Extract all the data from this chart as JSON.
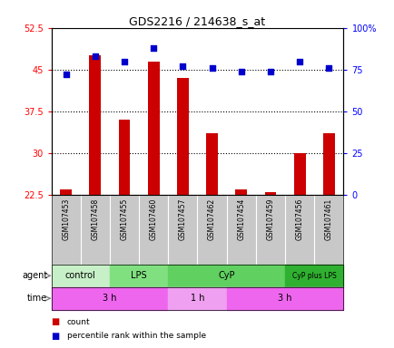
{
  "title": "GDS2216 / 214638_s_at",
  "samples": [
    "GSM107453",
    "GSM107458",
    "GSM107455",
    "GSM107460",
    "GSM107457",
    "GSM107462",
    "GSM107454",
    "GSM107459",
    "GSM107456",
    "GSM107461"
  ],
  "count_values": [
    23.5,
    47.5,
    36.0,
    46.5,
    43.5,
    33.5,
    23.5,
    23.0,
    30.0,
    33.5
  ],
  "percentile_values": [
    72,
    83,
    80,
    88,
    77,
    76,
    74,
    74,
    80,
    76
  ],
  "ylim_left": [
    22.5,
    52.5
  ],
  "ylim_right": [
    0,
    100
  ],
  "yticks_left": [
    22.5,
    30,
    37.5,
    45,
    52.5
  ],
  "yticks_right": [
    0,
    25,
    50,
    75,
    100
  ],
  "ytick_labels_left": [
    "22.5",
    "30",
    "37.5",
    "45",
    "52.5"
  ],
  "ytick_labels_right": [
    "0",
    "25",
    "50",
    "75",
    "100%"
  ],
  "hline_positions": [
    30,
    37.5,
    45
  ],
  "bar_color": "#cc0000",
  "dot_color": "#0000cc",
  "agent_groups": [
    {
      "label": "control",
      "start": 0,
      "end": 2,
      "color": "#c8f0c8"
    },
    {
      "label": "LPS",
      "start": 2,
      "end": 4,
      "color": "#80e080"
    },
    {
      "label": "CyP",
      "start": 4,
      "end": 8,
      "color": "#60d060"
    },
    {
      "label": "CyP plus LPS",
      "start": 8,
      "end": 10,
      "color": "#30b030"
    }
  ],
  "time_groups": [
    {
      "label": "3 h",
      "start": 0,
      "end": 4,
      "color": "#ee66ee"
    },
    {
      "label": "1 h",
      "start": 4,
      "end": 6,
      "color": "#f0a0f0"
    },
    {
      "label": "3 h",
      "start": 6,
      "end": 10,
      "color": "#ee66ee"
    }
  ],
  "legend_count_label": "count",
  "legend_pct_label": "percentile rank within the sample",
  "agent_label": "agent",
  "time_label": "time",
  "plot_bg_color": "#ffffff",
  "sample_header_color": "#c8c8c8",
  "bar_width": 0.4
}
